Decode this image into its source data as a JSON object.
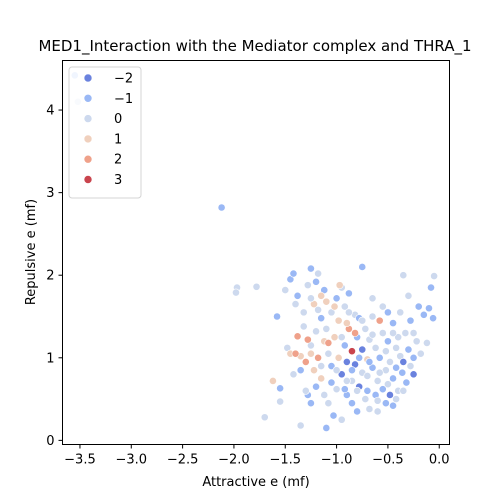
{
  "chart_data": {
    "type": "scatter",
    "title": "MED1_Interaction with the Mediator complex and THRA_1",
    "xlabel": "Attractive e (mf)",
    "ylabel": "Repulsive e (mf)",
    "xlim": [
      -3.67,
      0.1
    ],
    "ylim": [
      -0.05,
      4.6
    ],
    "xticks": [
      -3.5,
      -3.0,
      -2.5,
      -2.0,
      -1.5,
      -1.0,
      -0.5,
      0.0
    ],
    "yticks": [
      0,
      1,
      2,
      3,
      4
    ],
    "grid": false,
    "legend": {
      "placement": "top-left",
      "entries": [
        {
          "label": "−2",
          "color": "#6a82de"
        },
        {
          "label": "−1",
          "color": "#9ab8f5"
        },
        {
          "label": "0",
          "color": "#cdd9ee"
        },
        {
          "label": "1",
          "color": "#f0d0bd"
        },
        {
          "label": "2",
          "color": "#efa18a"
        },
        {
          "label": "3",
          "color": "#c9444d"
        }
      ]
    },
    "colors": {
      "-2": "#6a82de",
      "-1": "#9ab8f5",
      "0": "#cdd9ee",
      "1": "#f0d0bd",
      "2": "#efa18a",
      "3": "#c9444d"
    },
    "points": [
      {
        "x": -3.55,
        "y": 4.42,
        "c": -1
      },
      {
        "x": -3.52,
        "y": 4.1,
        "c": 0
      },
      {
        "x": -2.12,
        "y": 2.82,
        "c": -1
      },
      {
        "x": -1.97,
        "y": 1.85,
        "c": 0
      },
      {
        "x": -1.98,
        "y": 1.79,
        "c": 0
      },
      {
        "x": -1.78,
        "y": 1.86,
        "c": 0
      },
      {
        "x": -1.7,
        "y": 0.28,
        "c": 0
      },
      {
        "x": -1.62,
        "y": 0.72,
        "c": 1
      },
      {
        "x": -1.58,
        "y": 1.5,
        "c": -1
      },
      {
        "x": -1.55,
        "y": 0.47,
        "c": 0
      },
      {
        "x": -1.55,
        "y": 0.63,
        "c": -1
      },
      {
        "x": -1.5,
        "y": 1.82,
        "c": 0
      },
      {
        "x": -1.48,
        "y": 1.12,
        "c": 0
      },
      {
        "x": -1.45,
        "y": 1.95,
        "c": -1
      },
      {
        "x": -1.42,
        "y": 2.02,
        "c": -1
      },
      {
        "x": -1.45,
        "y": 1.05,
        "c": 1
      },
      {
        "x": -1.42,
        "y": 0.8,
        "c": 0
      },
      {
        "x": -1.38,
        "y": 1.75,
        "c": -1
      },
      {
        "x": -1.38,
        "y": 1.26,
        "c": 2
      },
      {
        "x": -1.35,
        "y": 1.02,
        "c": 1
      },
      {
        "x": -1.35,
        "y": 0.18,
        "c": 0
      },
      {
        "x": -1.32,
        "y": 1.55,
        "c": 0
      },
      {
        "x": -1.3,
        "y": 0.95,
        "c": 2
      },
      {
        "x": -1.28,
        "y": 1.88,
        "c": 0
      },
      {
        "x": -1.28,
        "y": 0.55,
        "c": -1
      },
      {
        "x": -1.25,
        "y": 2.08,
        "c": -1
      },
      {
        "x": -1.25,
        "y": 1.15,
        "c": 0
      },
      {
        "x": -1.22,
        "y": 1.65,
        "c": 1
      },
      {
        "x": -1.22,
        "y": 0.85,
        "c": 1
      },
      {
        "x": -1.2,
        "y": 1.92,
        "c": -1
      },
      {
        "x": -1.2,
        "y": 1.32,
        "c": 0
      },
      {
        "x": -1.2,
        "y": 0.65,
        "c": -1
      },
      {
        "x": -1.18,
        "y": 1.0,
        "c": 2
      },
      {
        "x": -1.18,
        "y": 2.02,
        "c": 0
      },
      {
        "x": -1.15,
        "y": 1.48,
        "c": -1
      },
      {
        "x": -1.15,
        "y": 0.75,
        "c": 1
      },
      {
        "x": -1.12,
        "y": 1.82,
        "c": -1
      },
      {
        "x": -1.12,
        "y": 1.2,
        "c": 1
      },
      {
        "x": -1.1,
        "y": 0.15,
        "c": -1
      },
      {
        "x": -1.1,
        "y": 1.68,
        "c": 1
      },
      {
        "x": -1.08,
        "y": 1.05,
        "c": 0
      },
      {
        "x": -1.08,
        "y": 0.45,
        "c": 0
      },
      {
        "x": -1.05,
        "y": 1.55,
        "c": 0
      },
      {
        "x": -1.05,
        "y": 0.9,
        "c": -1
      },
      {
        "x": -1.03,
        "y": 0.3,
        "c": -1
      },
      {
        "x": -1.02,
        "y": 1.25,
        "c": 1
      },
      {
        "x": -1.0,
        "y": 1.72,
        "c": -1
      },
      {
        "x": -1.0,
        "y": 0.62,
        "c": 0
      },
      {
        "x": -0.98,
        "y": 1.45,
        "c": 1
      },
      {
        "x": -0.98,
        "y": 1.0,
        "c": 1
      },
      {
        "x": -0.95,
        "y": 1.85,
        "c": 0
      },
      {
        "x": -0.95,
        "y": 0.8,
        "c": -2
      },
      {
        "x": -0.95,
        "y": 0.25,
        "c": 0
      },
      {
        "x": -0.92,
        "y": 1.62,
        "c": 0
      },
      {
        "x": -0.92,
        "y": 1.15,
        "c": -1
      },
      {
        "x": -0.9,
        "y": 0.95,
        "c": -2
      },
      {
        "x": -0.9,
        "y": 0.55,
        "c": -1
      },
      {
        "x": -0.88,
        "y": 1.78,
        "c": -1
      },
      {
        "x": -0.88,
        "y": 1.35,
        "c": 2
      },
      {
        "x": -0.85,
        "y": 1.08,
        "c": 3
      },
      {
        "x": -0.85,
        "y": 0.72,
        "c": 0
      },
      {
        "x": -0.85,
        "y": 0.45,
        "c": -1
      },
      {
        "x": -0.82,
        "y": 1.52,
        "c": 0
      },
      {
        "x": -0.82,
        "y": 0.92,
        "c": -2
      },
      {
        "x": -0.8,
        "y": 1.25,
        "c": -1
      },
      {
        "x": -0.8,
        "y": 0.35,
        "c": -1
      },
      {
        "x": -0.78,
        "y": 1.48,
        "c": -1
      },
      {
        "x": -0.78,
        "y": 0.65,
        "c": -2
      },
      {
        "x": -0.75,
        "y": 2.1,
        "c": -1
      },
      {
        "x": -0.75,
        "y": 1.1,
        "c": -2
      },
      {
        "x": -0.75,
        "y": 0.82,
        "c": 0
      },
      {
        "x": -0.72,
        "y": 1.35,
        "c": 0
      },
      {
        "x": -0.72,
        "y": 0.5,
        "c": 0
      },
      {
        "x": -0.7,
        "y": 0.98,
        "c": 1
      },
      {
        "x": -0.7,
        "y": 0.6,
        "c": -1
      },
      {
        "x": -0.68,
        "y": 1.22,
        "c": 0
      },
      {
        "x": -0.68,
        "y": 0.38,
        "c": 0
      },
      {
        "x": -0.65,
        "y": 1.5,
        "c": 0
      },
      {
        "x": -0.65,
        "y": 0.88,
        "c": -1
      },
      {
        "x": -0.62,
        "y": 1.12,
        "c": 0
      },
      {
        "x": -0.62,
        "y": 0.55,
        "c": -1
      },
      {
        "x": -0.6,
        "y": 0.72,
        "c": 0
      },
      {
        "x": -0.6,
        "y": 0.35,
        "c": 0
      },
      {
        "x": -0.58,
        "y": 1.45,
        "c": 2
      },
      {
        "x": -0.58,
        "y": 1.0,
        "c": -1
      },
      {
        "x": -0.55,
        "y": 1.3,
        "c": 0
      },
      {
        "x": -0.55,
        "y": 0.62,
        "c": -1
      },
      {
        "x": -0.52,
        "y": 0.85,
        "c": 0
      },
      {
        "x": -0.52,
        "y": 0.45,
        "c": -1
      },
      {
        "x": -0.5,
        "y": 1.55,
        "c": -1
      },
      {
        "x": -0.5,
        "y": 1.2,
        "c": -1
      },
      {
        "x": -0.48,
        "y": 0.95,
        "c": 0
      },
      {
        "x": -0.48,
        "y": 0.55,
        "c": -2
      },
      {
        "x": -0.45,
        "y": 1.42,
        "c": -1
      },
      {
        "x": -0.45,
        "y": 0.75,
        "c": -1
      },
      {
        "x": -0.45,
        "y": 0.42,
        "c": -1
      },
      {
        "x": -0.42,
        "y": 1.12,
        "c": 0
      },
      {
        "x": -0.42,
        "y": 0.88,
        "c": -1
      },
      {
        "x": -0.4,
        "y": 0.6,
        "c": 0
      },
      {
        "x": -0.38,
        "y": 1.02,
        "c": 0
      },
      {
        "x": -0.38,
        "y": 1.55,
        "c": 0
      },
      {
        "x": -0.36,
        "y": 0.82,
        "c": -1
      },
      {
        "x": -0.35,
        "y": 0.95,
        "c": -2
      },
      {
        "x": -0.33,
        "y": 1.3,
        "c": 0
      },
      {
        "x": -0.32,
        "y": 0.7,
        "c": -1
      },
      {
        "x": -0.3,
        "y": 1.1,
        "c": -1
      },
      {
        "x": -0.28,
        "y": 0.9,
        "c": 0
      },
      {
        "x": -0.28,
        "y": 1.45,
        "c": -1
      },
      {
        "x": -0.25,
        "y": 1.0,
        "c": -1
      },
      {
        "x": -0.25,
        "y": 0.8,
        "c": -2
      },
      {
        "x": -0.22,
        "y": 1.2,
        "c": 0
      },
      {
        "x": -0.2,
        "y": 1.62,
        "c": -1
      },
      {
        "x": -0.18,
        "y": 1.05,
        "c": 0
      },
      {
        "x": -0.15,
        "y": 1.52,
        "c": -1
      },
      {
        "x": -0.12,
        "y": 1.18,
        "c": 0
      },
      {
        "x": -0.1,
        "y": 1.6,
        "c": -1
      },
      {
        "x": -0.08,
        "y": 1.85,
        "c": -1
      },
      {
        "x": -0.06,
        "y": 1.48,
        "c": -1
      },
      {
        "x": -0.05,
        "y": 1.99,
        "c": 0
      },
      {
        "x": -0.35,
        "y": 2.0,
        "c": 0
      },
      {
        "x": -0.3,
        "y": 1.75,
        "c": 0
      },
      {
        "x": -0.55,
        "y": 1.62,
        "c": 0
      },
      {
        "x": -0.65,
        "y": 1.72,
        "c": 0
      },
      {
        "x": -0.4,
        "y": 1.25,
        "c": 0
      },
      {
        "x": -0.5,
        "y": 0.68,
        "c": 0
      },
      {
        "x": -0.6,
        "y": 0.48,
        "c": 0
      },
      {
        "x": -0.42,
        "y": 0.5,
        "c": 0
      },
      {
        "x": -0.7,
        "y": 0.78,
        "c": 0
      },
      {
        "x": -0.8,
        "y": 0.6,
        "c": 0
      },
      {
        "x": -0.9,
        "y": 0.72,
        "c": 0
      },
      {
        "x": -1.0,
        "y": 0.85,
        "c": 0
      },
      {
        "x": -1.1,
        "y": 1.35,
        "c": 0
      },
      {
        "x": -1.15,
        "y": 0.9,
        "c": 0
      },
      {
        "x": -0.95,
        "y": 1.25,
        "c": 0
      },
      {
        "x": -0.88,
        "y": 1.55,
        "c": 0
      },
      {
        "x": -0.75,
        "y": 1.45,
        "c": 0
      },
      {
        "x": -0.65,
        "y": 1.28,
        "c": 0
      },
      {
        "x": -0.58,
        "y": 0.82,
        "c": 0
      },
      {
        "x": -0.52,
        "y": 1.08,
        "c": 0
      },
      {
        "x": -0.45,
        "y": 1.3,
        "c": 0
      },
      {
        "x": -0.35,
        "y": 0.6,
        "c": 0
      },
      {
        "x": -0.25,
        "y": 1.3,
        "c": 0
      },
      {
        "x": -0.68,
        "y": 0.95,
        "c": -1
      },
      {
        "x": -0.78,
        "y": 1.0,
        "c": -1
      },
      {
        "x": -0.85,
        "y": 0.85,
        "c": -1
      },
      {
        "x": -0.92,
        "y": 0.62,
        "c": -1
      },
      {
        "x": -1.05,
        "y": 0.7,
        "c": -1
      },
      {
        "x": -1.12,
        "y": 0.55,
        "c": 0
      },
      {
        "x": -1.25,
        "y": 0.45,
        "c": -1
      },
      {
        "x": -1.3,
        "y": 0.6,
        "c": 0
      },
      {
        "x": -1.35,
        "y": 0.85,
        "c": -1
      },
      {
        "x": -1.32,
        "y": 1.38,
        "c": 0
      },
      {
        "x": -1.4,
        "y": 1.65,
        "c": 0
      },
      {
        "x": -1.25,
        "y": 1.72,
        "c": 0
      },
      {
        "x": -1.18,
        "y": 1.58,
        "c": 0
      },
      {
        "x": -1.02,
        "y": 1.62,
        "c": 1
      },
      {
        "x": -0.9,
        "y": 1.42,
        "c": 1
      },
      {
        "x": -0.82,
        "y": 1.3,
        "c": 2
      },
      {
        "x": -1.08,
        "y": 1.18,
        "c": 2
      },
      {
        "x": -1.25,
        "y": 1.05,
        "c": 1
      },
      {
        "x": -1.28,
        "y": 1.22,
        "c": 2
      },
      {
        "x": -1.4,
        "y": 1.05,
        "c": 2
      },
      {
        "x": -0.97,
        "y": 1.88,
        "c": 1
      },
      {
        "x": -1.15,
        "y": 1.75,
        "c": 1
      }
    ]
  }
}
